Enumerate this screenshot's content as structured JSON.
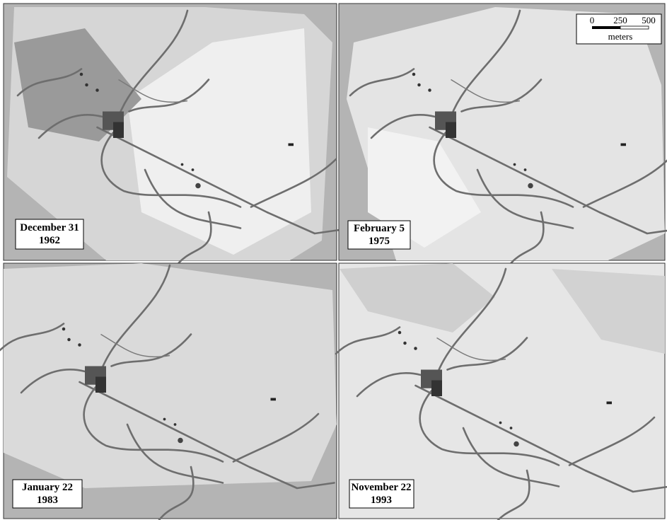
{
  "panels": [
    {
      "date": "December 31",
      "year": "1962"
    },
    {
      "date": "February 5",
      "year": "1975"
    },
    {
      "date": "January 22",
      "year": "1983"
    },
    {
      "date": "November 22",
      "year": "1993"
    }
  ],
  "scale_bar": {
    "ticks": [
      0,
      250,
      500
    ],
    "unit": "meters"
  }
}
